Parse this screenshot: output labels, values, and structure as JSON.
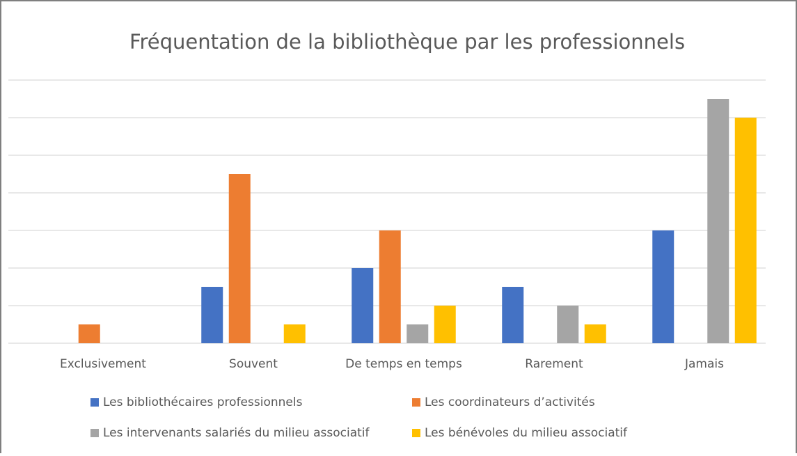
{
  "chart_data": {
    "type": "bar",
    "title": "Fréquentation de la bibliothèque par les professionnels",
    "categories": [
      "Exclusivement",
      "Souvent",
      "De temps en temps",
      "Rarement",
      "Jamais"
    ],
    "series": [
      {
        "name": "Les bibliothécaires professionnels",
        "color": "#4472c4",
        "values": [
          0,
          3,
          4,
          3,
          6
        ]
      },
      {
        "name": "Les coordinateurs d’activités",
        "color": "#ed7d31",
        "values": [
          1,
          9,
          6,
          0,
          0
        ]
      },
      {
        "name": "Les intervenants salariés du milieu associatif",
        "color": "#a5a5a5",
        "values": [
          0,
          0,
          1,
          2,
          13
        ]
      },
      {
        "name": "Les bénévoles du milieu associatif",
        "color": "#ffc000",
        "values": [
          0,
          1,
          2,
          1,
          12
        ]
      }
    ],
    "ylim": [
      0,
      14
    ],
    "yticks": [
      0,
      2,
      4,
      6,
      8,
      10,
      12,
      14
    ],
    "grid": true
  }
}
